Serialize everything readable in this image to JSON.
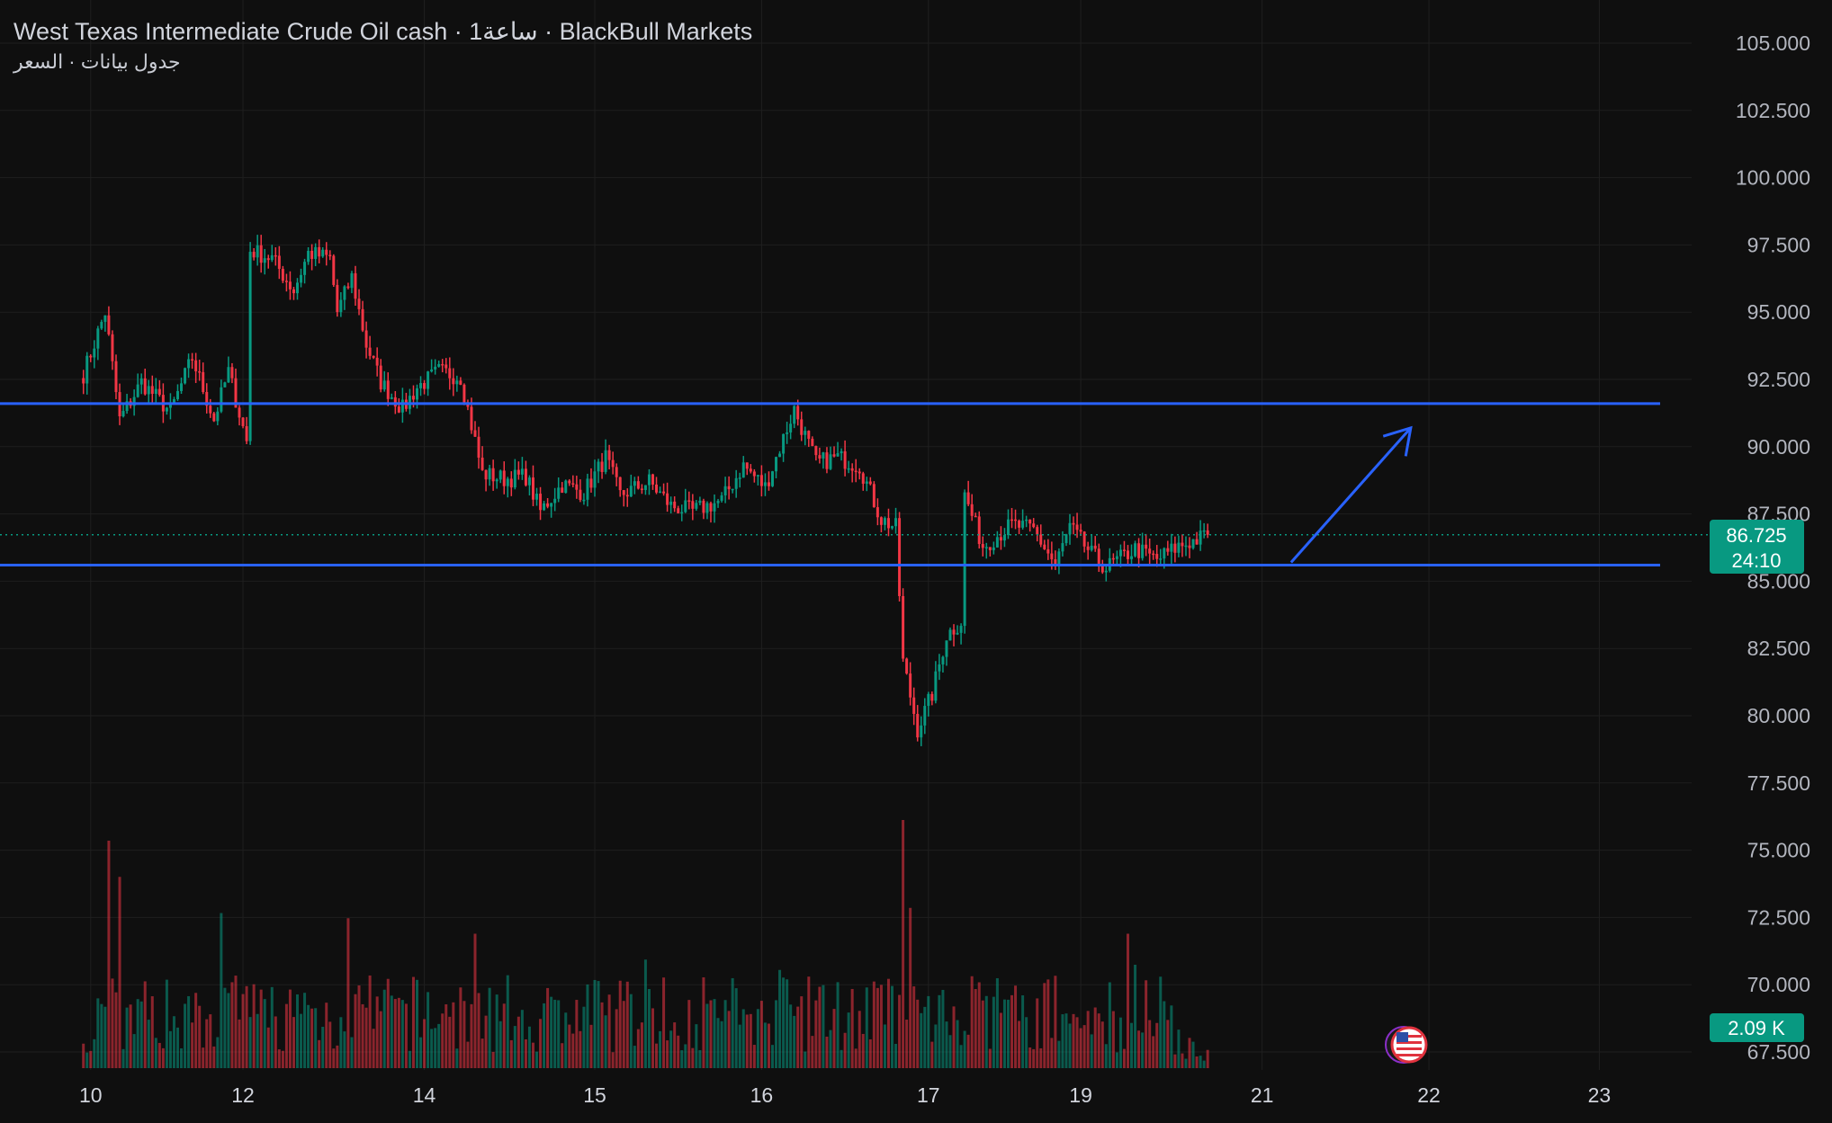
{
  "header": {
    "title": "West Texas Intermediate Crude Oil cash · 1ساعة · BlackBull Markets",
    "subtitle": "جدول بيانات · السعر"
  },
  "price_scale": {
    "last_price_label": "86.725",
    "countdown_label": "24:10",
    "volume_label": "2.09 K",
    "accent_color": "#089981",
    "down_color": "#f23645",
    "up_color": "#089981",
    "line_color": "#2962ff"
  },
  "chart_data": {
    "type": "candlestick",
    "instrument": "West Texas Intermediate Crude Oil cash",
    "interval": "1ساعة",
    "source": "BlackBull Markets",
    "y_ticks": [
      "105.000",
      "102.500",
      "100.000",
      "97.500",
      "95.000",
      "92.500",
      "90.000",
      "87.500",
      "85.000",
      "82.500",
      "80.000",
      "77.500",
      "75.000",
      "72.500",
      "70.000",
      "67.500"
    ],
    "ylim": [
      67.5,
      105.0
    ],
    "x_ticks": [
      {
        "label": "10",
        "t": 2
      },
      {
        "label": "12",
        "t": 44
      },
      {
        "label": "14",
        "t": 94
      },
      {
        "label": "15",
        "t": 141
      },
      {
        "label": "16",
        "t": 187
      },
      {
        "label": "17",
        "t": 233
      },
      {
        "label": "19",
        "t": 275
      },
      {
        "label": "21",
        "t": 325
      },
      {
        "label": "22",
        "t": 371
      },
      {
        "label": "23",
        "t": 418
      }
    ],
    "xlim": [
      -23,
      436
    ],
    "last_price": 86.725,
    "levels": [
      {
        "name": "resistance",
        "price": 91.6
      },
      {
        "name": "support",
        "price": 85.6
      }
    ],
    "arrow": {
      "from": {
        "t": 333,
        "price": 85.7
      },
      "to": {
        "t": 366,
        "price": 90.7
      }
    },
    "anchors": [
      {
        "t": 0,
        "price": 92.7
      },
      {
        "t": 6,
        "price": 95.0
      },
      {
        "t": 10,
        "price": 91.0
      },
      {
        "t": 16,
        "price": 92.4
      },
      {
        "t": 24,
        "price": 91.3
      },
      {
        "t": 30,
        "price": 93.3
      },
      {
        "t": 36,
        "price": 91.0
      },
      {
        "t": 40,
        "price": 92.8
      },
      {
        "t": 45,
        "price": 90.2
      },
      {
        "t": 46,
        "price": 97.3
      },
      {
        "t": 52,
        "price": 97.0
      },
      {
        "t": 58,
        "price": 95.8
      },
      {
        "t": 62,
        "price": 97.2
      },
      {
        "t": 68,
        "price": 97.0
      },
      {
        "t": 70,
        "price": 95.0
      },
      {
        "t": 74,
        "price": 96.3
      },
      {
        "t": 78,
        "price": 93.8
      },
      {
        "t": 82,
        "price": 92.4
      },
      {
        "t": 88,
        "price": 91.4
      },
      {
        "t": 92,
        "price": 92.2
      },
      {
        "t": 98,
        "price": 92.8
      },
      {
        "t": 104,
        "price": 92.6
      },
      {
        "t": 110,
        "price": 89.0
      },
      {
        "t": 116,
        "price": 88.8
      },
      {
        "t": 122,
        "price": 88.9
      },
      {
        "t": 126,
        "price": 87.6
      },
      {
        "t": 132,
        "price": 88.6
      },
      {
        "t": 138,
        "price": 88.3
      },
      {
        "t": 144,
        "price": 89.6
      },
      {
        "t": 148,
        "price": 88.2
      },
      {
        "t": 156,
        "price": 88.7
      },
      {
        "t": 162,
        "price": 87.8
      },
      {
        "t": 168,
        "price": 87.6
      },
      {
        "t": 176,
        "price": 88.0
      },
      {
        "t": 182,
        "price": 89.3
      },
      {
        "t": 188,
        "price": 88.5
      },
      {
        "t": 196,
        "price": 91.4
      },
      {
        "t": 202,
        "price": 89.4
      },
      {
        "t": 208,
        "price": 89.6
      },
      {
        "t": 214,
        "price": 89.3
      },
      {
        "t": 220,
        "price": 87.3
      },
      {
        "t": 224,
        "price": 87.0
      },
      {
        "t": 226,
        "price": 82.0
      },
      {
        "t": 230,
        "price": 79.5
      },
      {
        "t": 234,
        "price": 80.8
      },
      {
        "t": 238,
        "price": 83.0
      },
      {
        "t": 242,
        "price": 83.5
      },
      {
        "t": 243,
        "price": 88.2
      },
      {
        "t": 248,
        "price": 86.3
      },
      {
        "t": 256,
        "price": 87.1
      },
      {
        "t": 262,
        "price": 86.9
      },
      {
        "t": 268,
        "price": 85.6
      },
      {
        "t": 272,
        "price": 87.0
      },
      {
        "t": 278,
        "price": 86.0
      },
      {
        "t": 282,
        "price": 85.5
      },
      {
        "t": 290,
        "price": 86.2
      },
      {
        "t": 296,
        "price": 85.8
      },
      {
        "t": 302,
        "price": 86.3
      },
      {
        "t": 308,
        "price": 86.6
      },
      {
        "t": 310,
        "price": 86.725
      }
    ],
    "volume_spikes": [
      {
        "t": 7,
        "v": 2.2
      },
      {
        "t": 10,
        "v": 1.85
      },
      {
        "t": 38,
        "v": 1.5
      },
      {
        "t": 73,
        "v": 1.45
      },
      {
        "t": 108,
        "v": 1.3
      },
      {
        "t": 155,
        "v": 1.05
      },
      {
        "t": 192,
        "v": 0.95
      },
      {
        "t": 226,
        "v": 2.4
      },
      {
        "t": 228,
        "v": 1.55
      },
      {
        "t": 288,
        "v": 1.3
      },
      {
        "t": 290,
        "v": 1.0
      }
    ]
  }
}
